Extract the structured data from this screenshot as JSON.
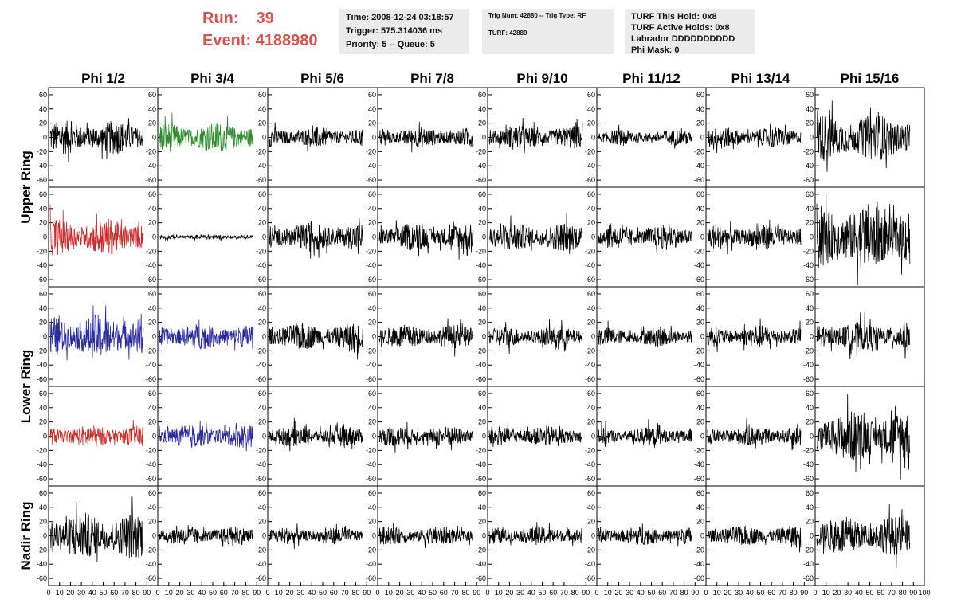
{
  "header": {
    "run_label": "Run:",
    "run_value": "39",
    "event_label": "Event: 4188980",
    "time_box": [
      "Time: 2008-12-24 03:18:57",
      "Trigger: 575.314036 ms",
      "Priority: 5 -- Queue: 5"
    ],
    "trig_box": [
      "Trig Num: 42880 -- Trig Type: RF",
      "",
      "TURF: 42889"
    ],
    "turf_box": [
      "TURF This Hold: 0x8",
      "TURF Active Holds: 0x8",
      "Labrador DDDDDDDDDD",
      "Phi Mask: 0"
    ]
  },
  "chart_data": {
    "type": "line",
    "title": "",
    "columns": [
      "Phi 1/2",
      "Phi 3/4",
      "Phi 5/6",
      "Phi 7/8",
      "Phi 9/10",
      "Phi 11/12",
      "Phi 13/14",
      "Phi 15/16"
    ],
    "rows": [
      {
        "label": "Upper Ring",
        "span": [
          0,
          1
        ]
      },
      {
        "label": "Lower Ring",
        "span": [
          2,
          3
        ]
      },
      {
        "label": "Nadir Ring",
        "span": [
          4,
          4
        ]
      }
    ],
    "xlim": [
      0,
      100
    ],
    "ylim": [
      -70,
      70
    ],
    "yticks": [
      -60,
      -40,
      -20,
      0,
      20,
      40,
      60
    ],
    "xticks": [
      0,
      10,
      20,
      30,
      40,
      50,
      60,
      70,
      80,
      90,
      100
    ],
    "colors": {
      "black": "#000000",
      "green": "#2e8b2e",
      "red": "#cc2b2b",
      "blue": "#2a2aa0"
    },
    "panel_amplitude": [
      [
        20,
        18,
        12,
        12,
        14,
        9,
        12,
        28
      ],
      [
        22,
        3,
        17,
        16,
        17,
        14,
        15,
        40
      ],
      [
        26,
        15,
        16,
        14,
        12,
        11,
        13,
        17
      ],
      [
        13,
        14,
        12,
        12,
        12,
        11,
        12,
        30
      ],
      [
        28,
        11,
        10,
        11,
        11,
        11,
        12,
        23
      ]
    ],
    "panel_color": [
      [
        "black",
        "green",
        "black",
        "black",
        "black",
        "black",
        "black",
        "black"
      ],
      [
        "red",
        "black",
        "black",
        "black",
        "black",
        "black",
        "black",
        "black"
      ],
      [
        "blue",
        "blue",
        "black",
        "black",
        "black",
        "black",
        "black",
        "black"
      ],
      [
        "red",
        "blue",
        "black",
        "black",
        "black",
        "black",
        "black",
        "black"
      ],
      [
        "black",
        "black",
        "black",
        "black",
        "black",
        "black",
        "black",
        "black"
      ]
    ]
  }
}
